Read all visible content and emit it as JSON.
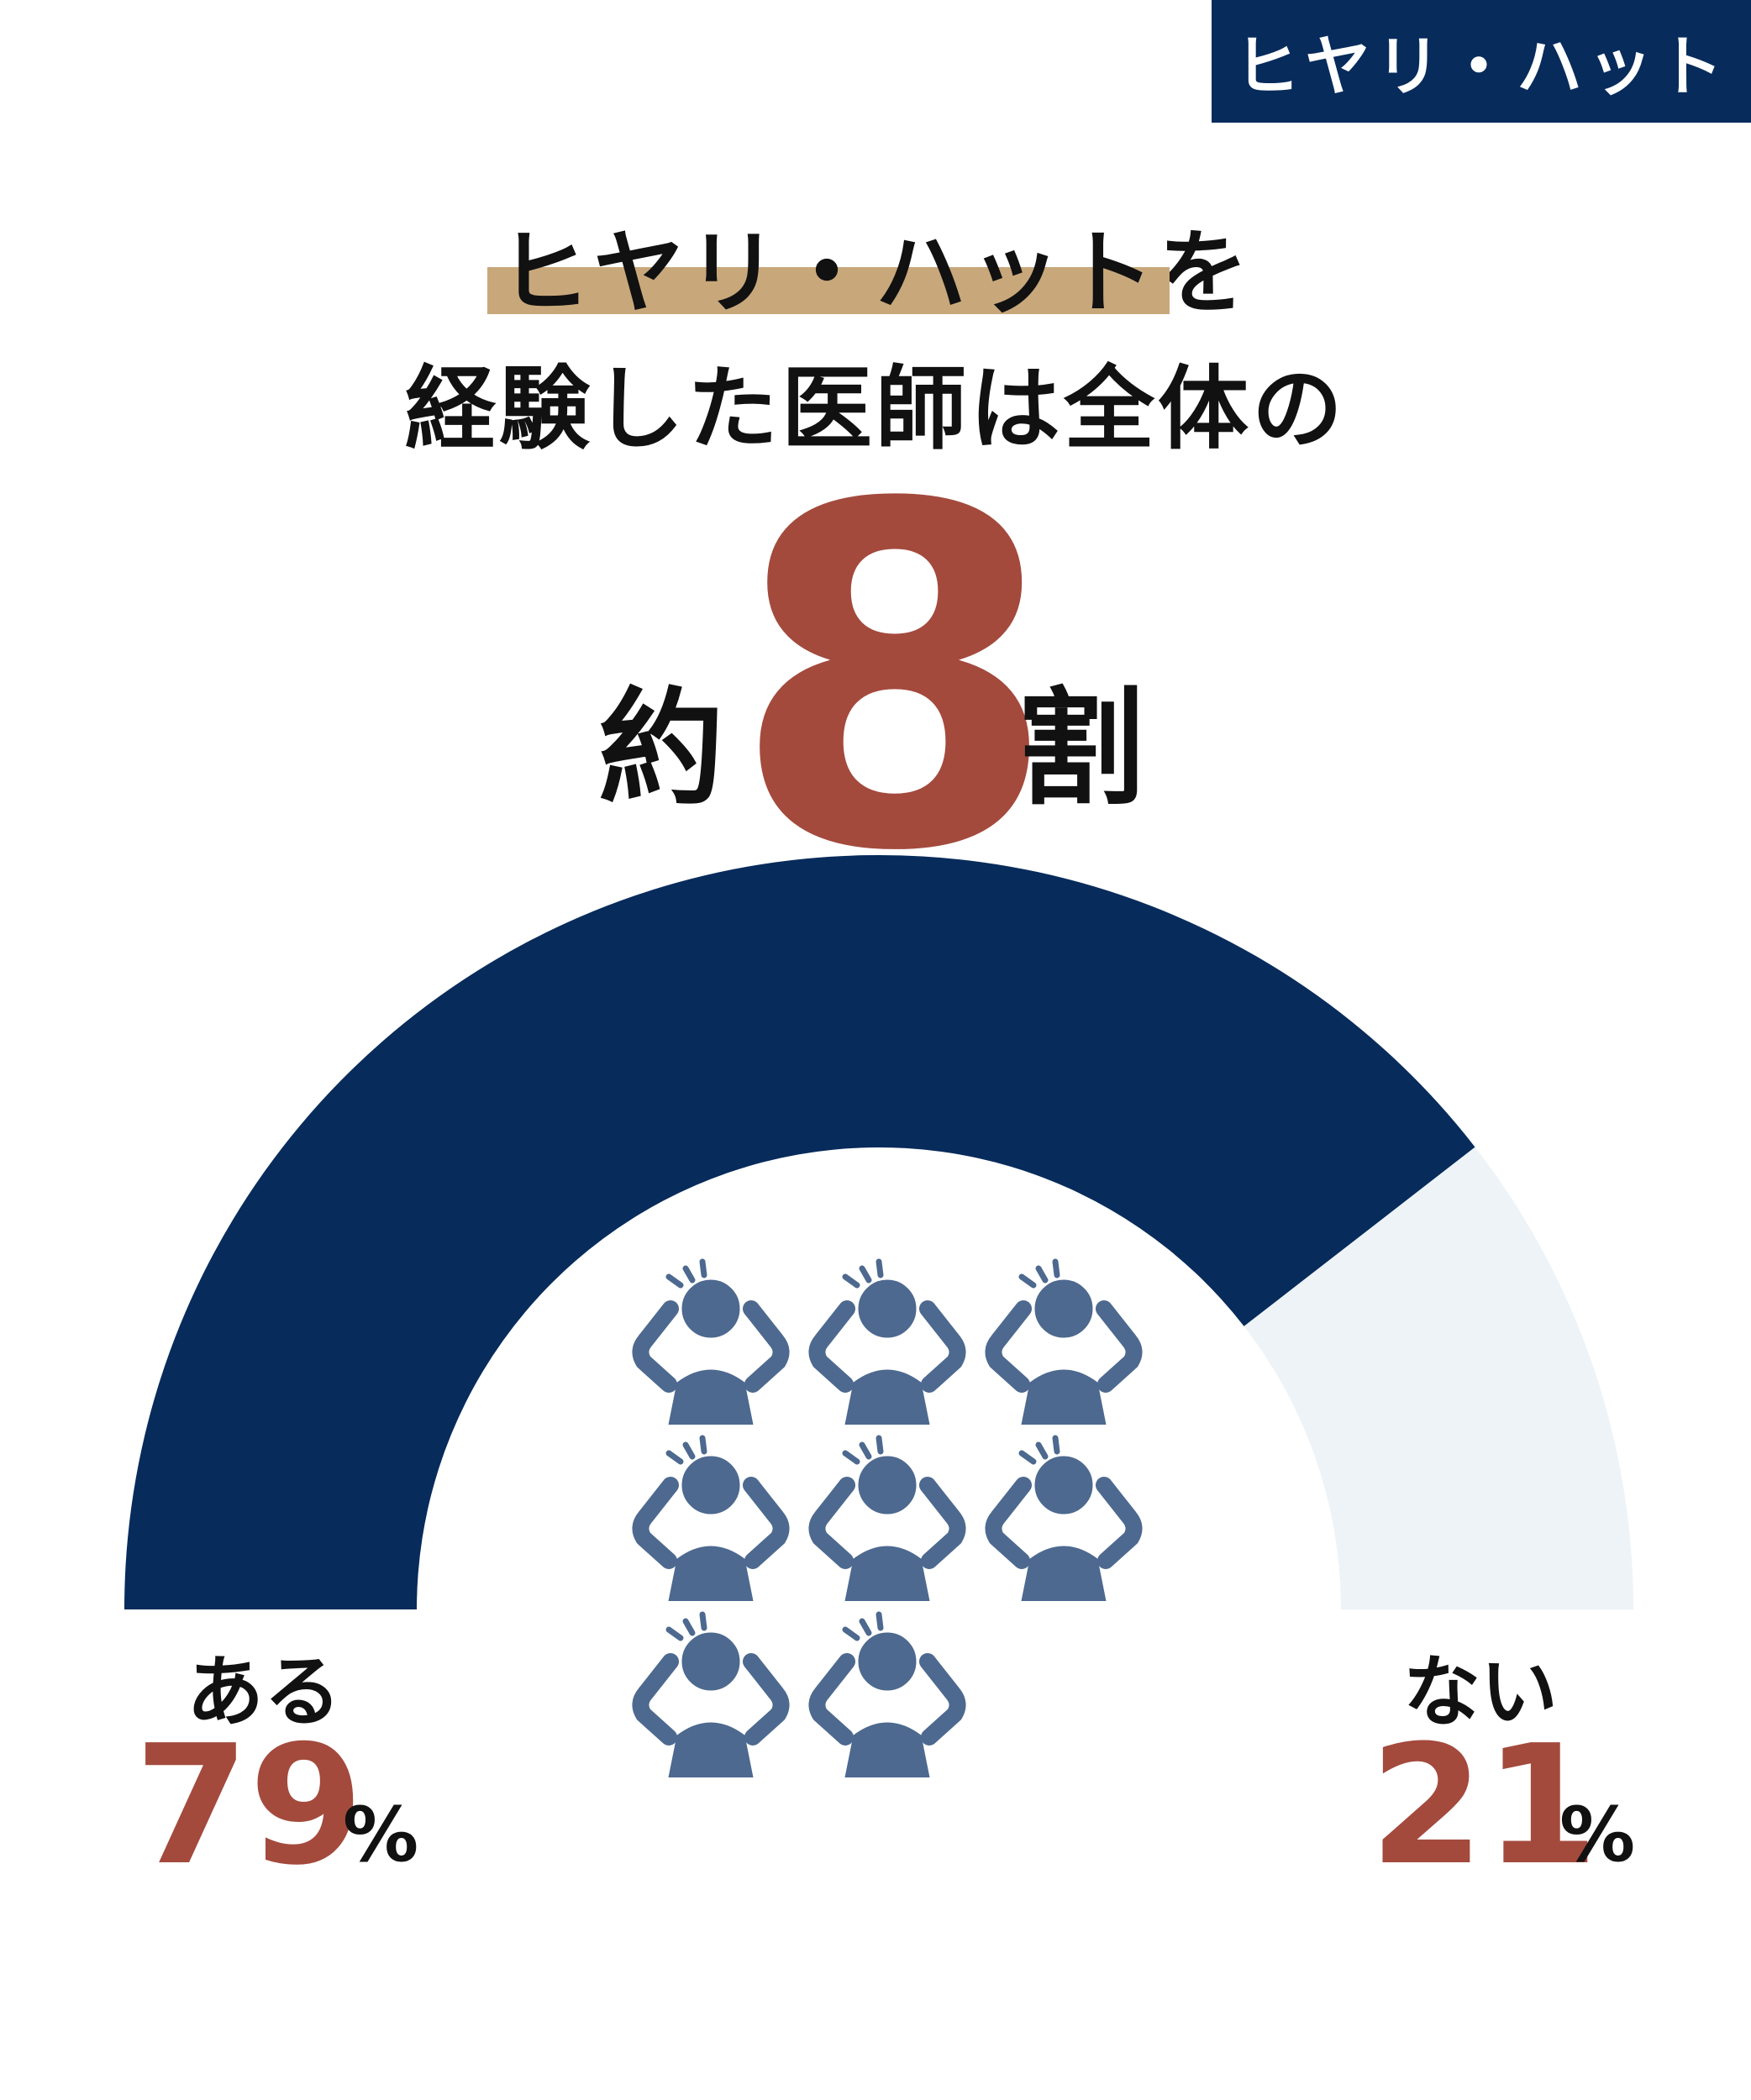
{
  "tag": "ヒヤリ・ハット",
  "headline": {
    "highlight": "ヒヤリ・ハット",
    "suffix": "を",
    "line2": "経験した医師は全体の",
    "approx_prefix": "約",
    "approx_value": "8",
    "approx_suffix": "割"
  },
  "chart_data": {
    "type": "pie",
    "style": "semi-donut",
    "slices": [
      {
        "label": "ある",
        "value": 79,
        "display": "79",
        "unit": "%",
        "color": "#072b5b"
      },
      {
        "label": "ない",
        "value": 21,
        "display": "21",
        "unit": "%",
        "color": "#edf3f7"
      }
    ],
    "icon": "worried-person-icon",
    "icon_count": 8,
    "icon_color": "#4d698f"
  }
}
